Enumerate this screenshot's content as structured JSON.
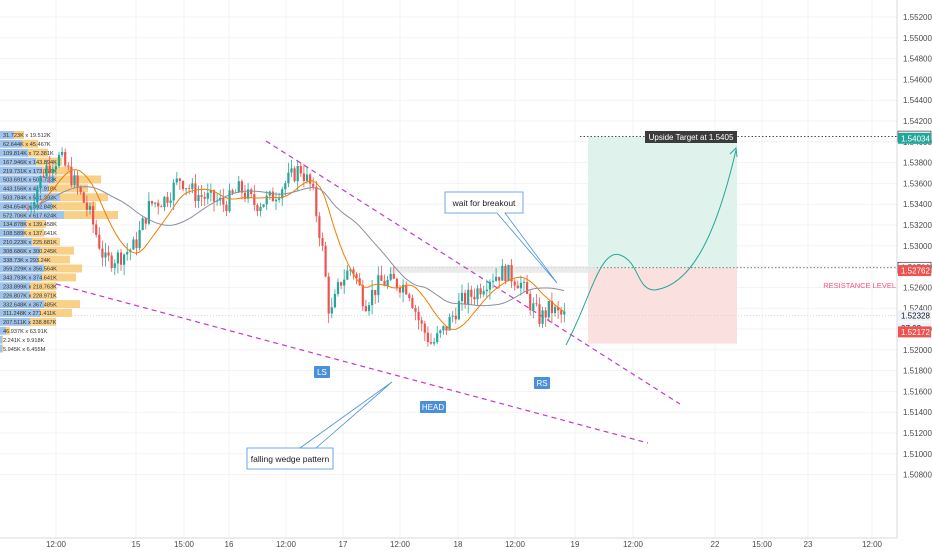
{
  "chart_data": {
    "type": "candlestick",
    "pair_levels": {
      "ylim": [
        1.5075,
        1.5565
      ],
      "target": 1.5405,
      "resistance": 1.52789
    },
    "y_ticks": [
      "1.55200",
      "1.55000",
      "1.54800",
      "1.54600",
      "1.54400",
      "1.54200",
      "1.54000",
      "1.53800",
      "1.53600",
      "1.53400",
      "1.53200",
      "1.53000",
      "1.52800",
      "1.52600",
      "1.52400",
      "1.52200",
      "1.52000",
      "1.51800",
      "1.51600",
      "1.51400",
      "1.51200",
      "1.51000",
      "1.50800"
    ],
    "x_ticks": [
      "12:00",
      "15",
      "15:00",
      "16",
      "12:00",
      "17",
      "12:00",
      "18",
      "12:00",
      "19",
      "12:00",
      "22",
      "15:00",
      "23",
      "12:00"
    ],
    "price_labels": [
      {
        "text": "1.54050",
        "value": 1.5405,
        "color": "#ffffff",
        "text_color": "#131722",
        "border": "#131722"
      },
      {
        "text": "1.54034",
        "value": 1.54034,
        "color": "#26a69a",
        "text_color": "#ffffff"
      },
      {
        "text": "1.52789",
        "value": 1.52789,
        "color": "#ffffff",
        "text_color": "#131722",
        "border": "#131722"
      },
      {
        "text": "1.52762",
        "value": 1.52762,
        "color": "#ef5350",
        "text_color": "#ffffff"
      },
      {
        "text": "1.52328",
        "value": 1.52328,
        "color": "#f0f3fa",
        "text_color": "#131722"
      },
      {
        "text": "07:02",
        "value": 1.5221,
        "color": "#f0f3fa",
        "text_color": "#131722"
      },
      {
        "text": "1.52172",
        "value": 1.52172,
        "color": "#ef5350",
        "text_color": "#ffffff"
      }
    ],
    "volume_profile_rows": [
      "31.723K x 19.512K",
      "62.644K x 45.467K",
      "109.814K x 72.381K",
      "167.946K x 143.894K",
      "219.731K x 173.176K",
      "503.691K x 503.723K",
      "443.156K x 417.918K",
      "503.784K x 541.393K",
      "494.654K x 392.849K",
      "572.706K x 617.624K",
      "134.878K x 139.458K",
      "108.589K x 137.641K",
      "210.223K x 225.681K",
      "308.686K x 300.245K",
      "338.73K x 293.24K",
      "359.229K x 356.564K",
      "343.793K x 374.641K",
      "233.899K x 218.763K",
      "226.807K x 228.971K",
      "332.648K x 367.485K",
      "311.248K x 271.411K",
      "207.511K x 238.867K",
      "46.937K x 63.91K",
      "2.241K x 9.918K",
      "5.945K x 6.455M"
    ],
    "annotations": {
      "target_label": "Upside Target at 1.5405",
      "breakout_label": "wait for breakout",
      "wedge_label": "falling wedge pattern",
      "resistance_label": "RESISTANCE LEVEL",
      "ls": "LS",
      "head": "HEAD",
      "rs": "RS"
    },
    "colors": {
      "up": "#26a69a",
      "down": "#ef5350",
      "ma_fast": "#f57c00",
      "ma_slow": "#8a8ea0",
      "wedge": "#c837c8",
      "badge": "#4a90d9",
      "projection": "#26a69a"
    }
  }
}
